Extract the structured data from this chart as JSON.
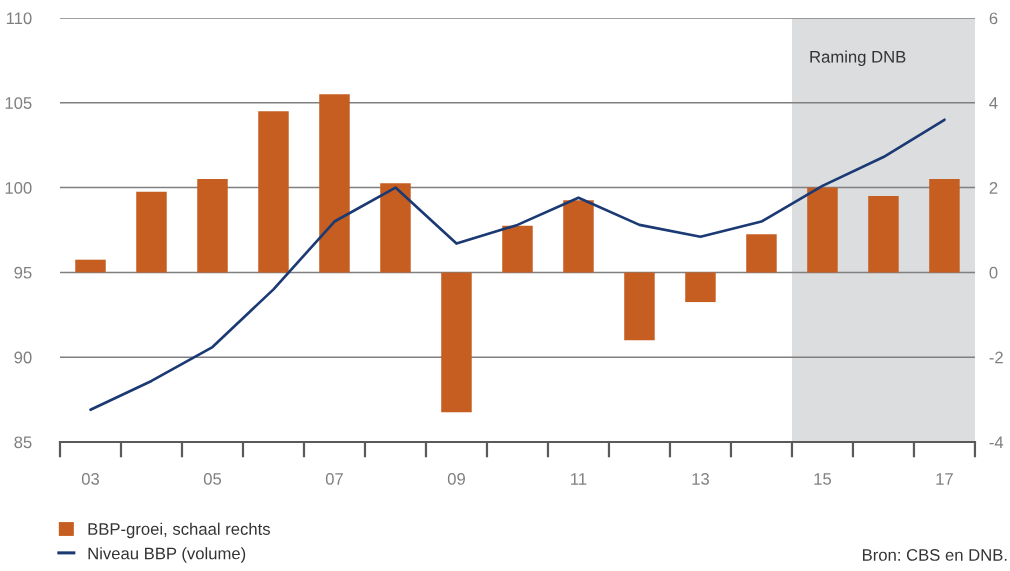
{
  "chart_data": {
    "type": "bar",
    "categories": [
      "03",
      null,
      "05",
      null,
      "07",
      null,
      "09",
      null,
      "11",
      null,
      "13",
      null,
      "15",
      null,
      "17"
    ],
    "series": [
      {
        "name": "BBP-groei, schaal rechts",
        "axis": "y2",
        "color": "#c55e20",
        "values": [
          0.3,
          1.9,
          2.2,
          3.8,
          4.2,
          2.1,
          -3.3,
          1.1,
          1.7,
          -1.6,
          -0.7,
          0.9,
          2.0,
          1.8,
          2.2
        ]
      },
      {
        "name": "Niveau BBP (volume)",
        "type": "line",
        "color": "#1b3a73",
        "values": [
          86.9,
          88.6,
          90.6,
          94.0,
          98.0,
          100.0,
          96.7,
          97.8,
          99.4,
          97.8,
          97.1,
          98.0,
          100.1,
          101.8,
          104.0
        ]
      }
    ],
    "ylim": [
      85,
      110
    ],
    "yticks": [
      85,
      90,
      95,
      100,
      105,
      110
    ],
    "y2lim": [
      -4,
      6
    ],
    "y2ticks": [
      -4,
      -2,
      0,
      2,
      4,
      6
    ],
    "bands": [
      {
        "axis": "x",
        "from": "15",
        "to": "17",
        "label": "Raming DNB",
        "color": "#dcdddf"
      }
    ],
    "grid": "y",
    "legend": "bottom left",
    "annotations": [
      "Bron: CBS en DNB."
    ]
  }
}
